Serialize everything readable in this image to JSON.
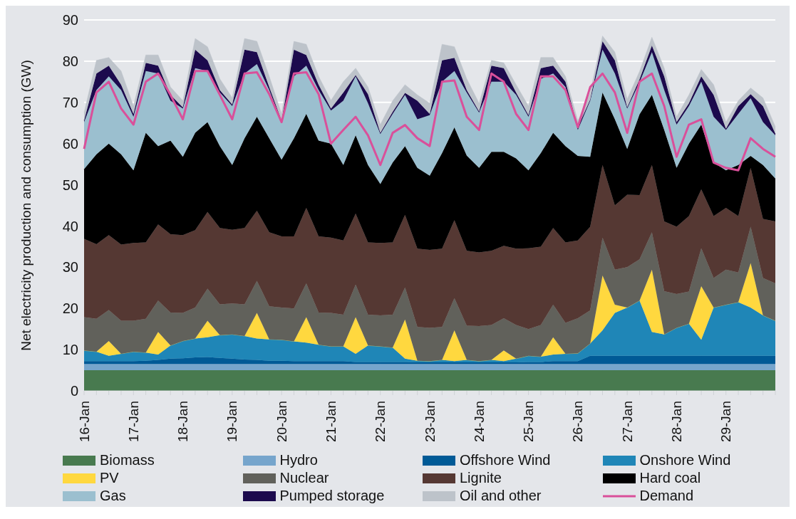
{
  "chart_data": {
    "type": "area",
    "stacked": true,
    "ylabel": "Net electricity production and consumption (GW)",
    "categories": [
      "16-Jan",
      null,
      null,
      null,
      "17-Jan",
      null,
      null,
      null,
      "18-Jan",
      null,
      null,
      null,
      "19-Jan",
      null,
      null,
      null,
      "20-Jan",
      null,
      null,
      null,
      "21-Jan",
      null,
      null,
      null,
      "22-Jan",
      null,
      null,
      null,
      "23-Jan",
      null,
      null,
      null,
      "24-Jan",
      null,
      null,
      null,
      "25-Jan",
      null,
      null,
      null,
      "26-Jan",
      null,
      null,
      null,
      "27-Jan",
      null,
      null,
      null,
      "28-Jan",
      null,
      null,
      null,
      "29-Jan",
      null,
      null,
      null,
      null
    ],
    "ylim": [
      0,
      90
    ],
    "yticks": [
      0,
      10,
      20,
      30,
      40,
      50,
      60,
      70,
      80,
      90
    ],
    "grid": "y",
    "legend": "bottom",
    "series": [
      {
        "name": "Biomass",
        "color": "#487a4f",
        "values": [
          5,
          5,
          5,
          5,
          5,
          5,
          5,
          5,
          5,
          5,
          5,
          5,
          5,
          5,
          5,
          5,
          5,
          5,
          5,
          5,
          5,
          5,
          5,
          5,
          5,
          5,
          5,
          5,
          5,
          5,
          5,
          5,
          5,
          5,
          5,
          5,
          5,
          5,
          5,
          5,
          5,
          5,
          5,
          5,
          5,
          5,
          5,
          5,
          5,
          5,
          5,
          5,
          5,
          5,
          5,
          5,
          5
        ]
      },
      {
        "name": "Hydro",
        "color": "#76a5cc",
        "values": [
          1.5,
          1.5,
          1.5,
          1.5,
          1.5,
          1.5,
          1.5,
          1.5,
          1.5,
          1.5,
          1.5,
          1.5,
          1.5,
          1.5,
          1.5,
          1.5,
          1.5,
          1.5,
          1.5,
          1.5,
          1.5,
          1.5,
          1.5,
          1.5,
          1.5,
          1.5,
          1.5,
          1.5,
          1.5,
          1.5,
          1.5,
          1.5,
          1.5,
          1.5,
          1.5,
          1.5,
          1.5,
          1.5,
          1.5,
          1.5,
          1.5,
          1.5,
          1.5,
          1.5,
          1.5,
          1.5,
          1.5,
          1.5,
          1.5,
          1.5,
          1.5,
          1.5,
          1.5,
          1.5,
          1.5,
          1.5,
          1.5
        ]
      },
      {
        "name": "Offshore Wind",
        "color": "#005a96",
        "values": [
          0.7,
          0.7,
          0.7,
          0.7,
          0.7,
          0.8,
          1.0,
          1.3,
          1.4,
          1.6,
          1.7,
          1.5,
          1.3,
          1.1,
          1.0,
          0.8,
          0.8,
          0.7,
          0.7,
          0.7,
          0.7,
          0.7,
          0.5,
          0.5,
          0.5,
          0.5,
          0.5,
          0.4,
          0.4,
          0.4,
          0.4,
          0.4,
          0.4,
          0.4,
          0.4,
          0.4,
          0.5,
          0.5,
          0.7,
          0.7,
          0.7,
          2,
          2,
          2,
          2,
          2,
          2,
          2,
          2,
          2,
          2,
          2,
          2,
          2,
          2,
          2,
          2
        ]
      },
      {
        "name": "Onshore Wind",
        "color": "#1f86b7",
        "values": [
          2.6,
          2.3,
          1.3,
          1.8,
          2.3,
          2.0,
          1.3,
          3.2,
          4.2,
          4.6,
          4.8,
          5.5,
          5.9,
          5.7,
          5.2,
          5.2,
          5.1,
          4.8,
          4.5,
          4.0,
          3.6,
          3.6,
          2,
          4,
          3.8,
          3.5,
          0.8,
          0.4,
          0.3,
          0.6,
          0.3,
          0.6,
          0.3,
          0.6,
          0.3,
          0.9,
          1.5,
          1.3,
          1.6,
          1.8,
          1.9,
          3,
          6.2,
          10.4,
          11.7,
          13.4,
          5.8,
          5.2,
          6.8,
          7.8,
          3.9,
          11.7,
          12.4,
          13,
          11.7,
          9.8,
          8.5
        ]
      },
      {
        "name": "PV",
        "color": "#ffd83f",
        "values": [
          0,
          0,
          3.6,
          0,
          0,
          0,
          5.5,
          0,
          0,
          0,
          4.0,
          0,
          0,
          0,
          6.2,
          0,
          0,
          0,
          6.2,
          0,
          0,
          0,
          8.9,
          0,
          0,
          0,
          9.5,
          0,
          0,
          0,
          7.5,
          0,
          0,
          0,
          2.6,
          0,
          0,
          0,
          4.2,
          0,
          0,
          0,
          13.3,
          2,
          0,
          0,
          15.1,
          0,
          0,
          0,
          13,
          0,
          0,
          0,
          10.8,
          0,
          0
        ]
      },
      {
        "name": "Nuclear",
        "color": "#61615b",
        "values": [
          8.1,
          8.0,
          7.5,
          8,
          7.5,
          8.2,
          7.6,
          8,
          6.8,
          7.5,
          7.8,
          7.5,
          7.5,
          7.7,
          7.8,
          8,
          7.8,
          8,
          8.2,
          7.8,
          8.1,
          7.7,
          7.9,
          7.5,
          7.5,
          8,
          7.8,
          8.2,
          8.1,
          8,
          7.8,
          8.3,
          8.5,
          8.5,
          7.8,
          8.2,
          6.5,
          7.7,
          7.9,
          7.5,
          8.5,
          8,
          9.2,
          8.5,
          9.8,
          10,
          9.1,
          10.5,
          8.2,
          7.8,
          9.2,
          7.2,
          8.5,
          7.2,
          8.8,
          9.1,
          9.1
        ]
      },
      {
        "name": "Lignite",
        "color": "#553833",
        "values": [
          19,
          18.1,
          18.2,
          18.5,
          18.9,
          18.5,
          18.5,
          19,
          18.9,
          18.8,
          18.6,
          18.5,
          17.9,
          18.5,
          17,
          18,
          17.3,
          17.5,
          18.3,
          18.5,
          18.3,
          18,
          17.2,
          17.5,
          17.6,
          17.5,
          17.6,
          19,
          18.9,
          19,
          18.9,
          18.2,
          17.9,
          18,
          17.6,
          18.5,
          19.6,
          19,
          18.6,
          19.5,
          18.9,
          20.3,
          17.6,
          15.6,
          17.6,
          15.6,
          16.3,
          16.9,
          16.3,
          18.3,
          14.3,
          15,
          15,
          13.7,
          14.3,
          14.3,
          15
        ]
      },
      {
        "name": "Hard coal",
        "color": "#000000",
        "values": [
          16.9,
          21.8,
          22.2,
          21.9,
          17.6,
          26.6,
          19,
          22.7,
          19,
          23.6,
          21.8,
          19.9,
          15.7,
          21.8,
          22.8,
          22.8,
          18.6,
          23.8,
          22.8,
          23.2,
          22.8,
          18.3,
          19,
          18.8,
          14.3,
          19.4,
          16.7,
          19.6,
          18,
          23.2,
          22.5,
          23.1,
          20.5,
          24,
          22.8,
          21.9,
          18.9,
          22.7,
          23.1,
          23.4,
          20.5,
          17,
          17.6,
          20.9,
          11.1,
          19.6,
          17,
          22.2,
          14.3,
          17.6,
          15.7,
          13,
          9.1,
          12.4,
          2.9,
          13.1,
          10.4
        ]
      },
      {
        "name": "Gas",
        "color": "#9bbfcf",
        "values": [
          11.4,
          15.6,
          16.3,
          15.6,
          13,
          15,
          17.6,
          9.7,
          11.7,
          15.7,
          12.4,
          13,
          14.3,
          15.7,
          12.8,
          11.7,
          9.1,
          15,
          11.7,
          12.3,
          8,
          15.6,
          14.3,
          15,
          12.1,
          11.8,
          12.4,
          11.8,
          14.7,
          17.3,
          13.7,
          15.3,
          13.4,
          17,
          17,
          15.4,
          13,
          18,
          14.4,
          14.3,
          6.3,
          13.6,
          10.4,
          11.1,
          9.8,
          7.8,
          10.4,
          9.7,
          10.5,
          9.1,
          10.4,
          11.1,
          9.8,
          12.4,
          14,
          10.4,
          10.5
        ]
      },
      {
        "name": "Pumped storage",
        "color": "#1c0a4d",
        "values": [
          0.4,
          4.0,
          2.6,
          1.3,
          0.7,
          2,
          1.9,
          1.4,
          0.3,
          4.5,
          2.6,
          0.6,
          0.4,
          5.8,
          2.9,
          0.7,
          0.4,
          6.5,
          2.6,
          1.3,
          0.5,
          2,
          0.3,
          2.2,
          0.3,
          0.5,
          0.5,
          4.5,
          0.3,
          5.2,
          3.2,
          0.6,
          0.3,
          3.9,
          3.3,
          0.6,
          0.4,
          2.6,
          1.9,
          1.3,
          0.7,
          0.3,
          2,
          3.2,
          0.3,
          0.7,
          1.6,
          3.3,
          0.6,
          0.7,
          1.3,
          5.3,
          0.3,
          1.9,
          1,
          3.9,
          0.4
        ]
      },
      {
        "name": "Oil and other",
        "color": "#bdc3ca",
        "values": [
          1.9,
          3.2,
          2.0,
          3.3,
          1.9,
          1.9,
          2.6,
          1.9,
          1.6,
          2.7,
          3.3,
          2.7,
          1.6,
          2.7,
          2.6,
          2.6,
          1.6,
          2,
          2.6,
          2,
          2,
          2.6,
          1.7,
          1.7,
          2,
          2.7,
          2,
          1.4,
          2.6,
          3.9,
          2.7,
          2.7,
          2,
          1.3,
          1.3,
          1.9,
          2.2,
          2.6,
          2,
          1.3,
          1.5,
          1.7,
          1.3,
          2,
          2,
          1.9,
          2,
          2,
          1.3,
          2,
          1.7,
          2.5,
          1.6,
          1.3,
          1.5,
          2,
          1.7
        ]
      },
      {
        "name": "Demand",
        "type": "line",
        "color": "#d9509a",
        "line_style": "solid",
        "values": [
          58.7,
          72.4,
          75,
          68.5,
          64.6,
          75,
          77,
          71.8,
          65.9,
          77.6,
          77.6,
          71.8,
          65.9,
          77,
          77.3,
          72,
          65.2,
          77,
          77.3,
          72,
          60,
          63.3,
          66.5,
          62,
          54.8,
          62.6,
          64.5,
          61.3,
          59.4,
          75,
          75.3,
          66.5,
          63.3,
          77,
          75,
          67.2,
          63.3,
          76.3,
          76.3,
          73,
          64,
          73.7,
          77,
          72.4,
          62.6,
          75,
          77,
          69.1,
          56.8,
          64.6,
          65.9,
          55.4,
          54.1,
          53.5,
          61.3,
          58.7,
          56.8
        ]
      }
    ]
  }
}
